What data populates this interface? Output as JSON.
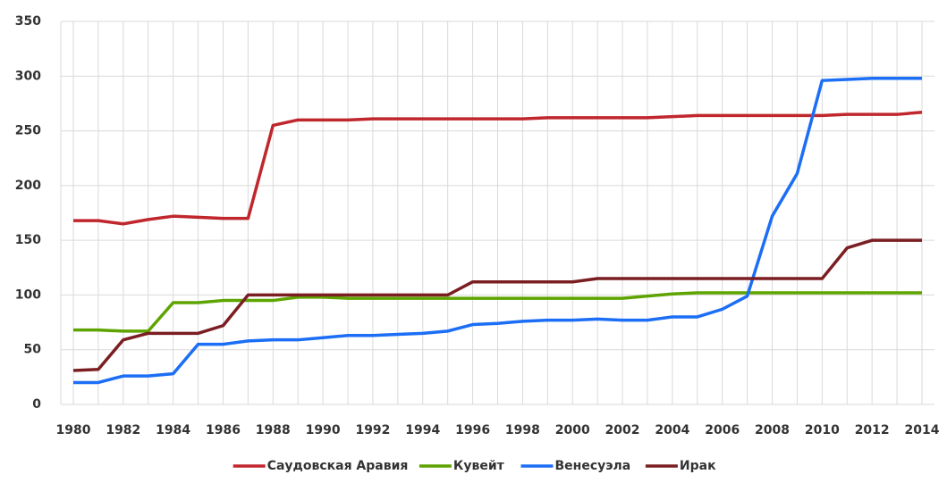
{
  "chart_data": {
    "type": "line",
    "x": [
      1980,
      1981,
      1982,
      1983,
      1984,
      1985,
      1986,
      1987,
      1988,
      1989,
      1990,
      1991,
      1992,
      1993,
      1994,
      1995,
      1996,
      1997,
      1998,
      1999,
      2000,
      2001,
      2002,
      2003,
      2004,
      2005,
      2006,
      2007,
      2008,
      2009,
      2010,
      2011,
      2012,
      2013,
      2014
    ],
    "xlim": [
      1980,
      2014
    ],
    "xticks": [
      1980,
      1982,
      1984,
      1986,
      1988,
      1990,
      1992,
      1994,
      1996,
      1998,
      2000,
      2002,
      2004,
      2006,
      2008,
      2010,
      2012,
      2014
    ],
    "ylim": [
      0,
      350
    ],
    "yticks": [
      0,
      50,
      100,
      150,
      200,
      250,
      300,
      350
    ],
    "grid": true,
    "legend": "bottom",
    "series": [
      {
        "name": "Саудовская Аравия",
        "color": "#c0272d",
        "values": [
          168,
          168,
          165,
          169,
          172,
          171,
          170,
          170,
          255,
          260,
          260,
          260,
          261,
          261,
          261,
          261,
          261,
          261,
          261,
          262,
          262,
          262,
          262,
          262,
          263,
          264,
          264,
          264,
          264,
          264,
          264,
          265,
          265,
          265,
          267
        ]
      },
      {
        "name": "Кувейт",
        "color": "#5ea400",
        "values": [
          68,
          68,
          67,
          67,
          93,
          93,
          95,
          95,
          95,
          98,
          98,
          97,
          97,
          97,
          97,
          97,
          97,
          97,
          97,
          97,
          97,
          97,
          97,
          99,
          101,
          102,
          102,
          102,
          102,
          102,
          102,
          102,
          102,
          102,
          102
        ]
      },
      {
        "name": "Венесуэла",
        "color": "#1b6ef5",
        "values": [
          20,
          20,
          26,
          26,
          28,
          55,
          55,
          58,
          59,
          59,
          61,
          63,
          63,
          64,
          65,
          67,
          73,
          74,
          76,
          77,
          77,
          78,
          77,
          77,
          80,
          80,
          87,
          99,
          172,
          211,
          296,
          297,
          298,
          298,
          298
        ]
      },
      {
        "name": "Ирак",
        "color": "#7b1e22",
        "values": [
          31,
          32,
          59,
          65,
          65,
          65,
          72,
          100,
          100,
          100,
          100,
          100,
          100,
          100,
          100,
          100,
          112,
          112,
          112,
          112,
          112,
          115,
          115,
          115,
          115,
          115,
          115,
          115,
          115,
          115,
          115,
          143,
          150,
          150,
          150
        ]
      }
    ]
  }
}
